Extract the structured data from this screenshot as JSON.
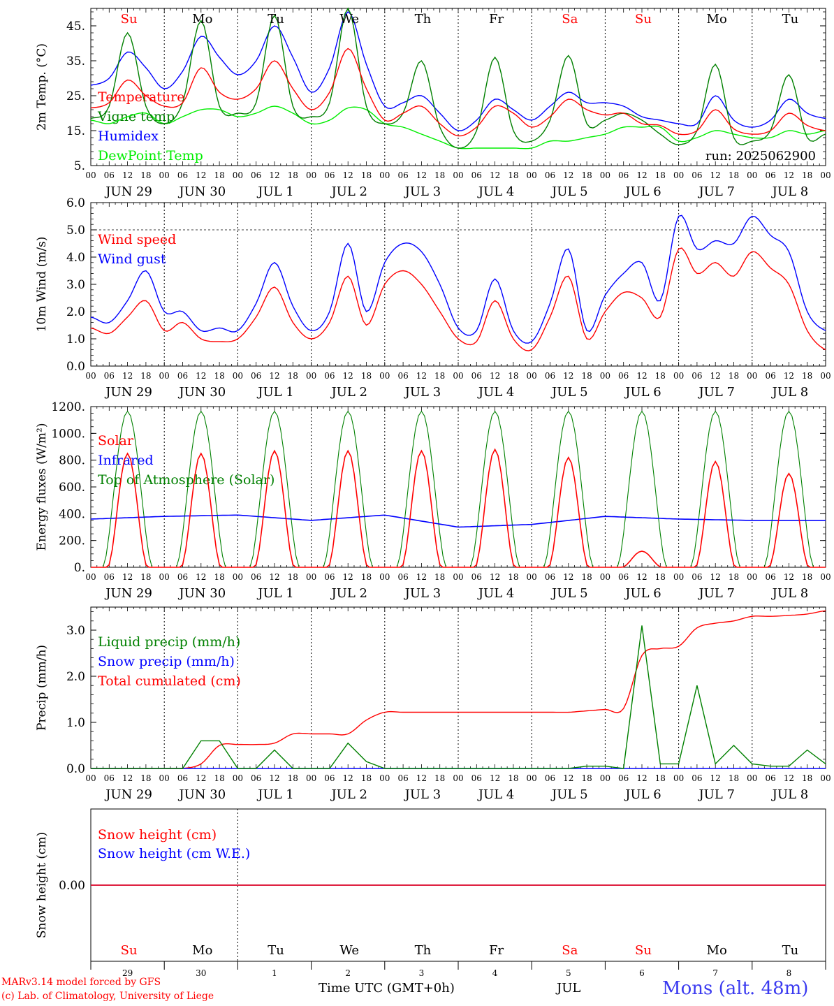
{
  "chart_data": [
    {
      "type": "line",
      "ylabel": "2m Temp. (°C)",
      "ylim": [
        5,
        50
      ],
      "yticks": [
        "5.",
        "15.",
        "25.",
        "35.",
        "45."
      ],
      "grid_hline": null,
      "run_label": "run: 2025062900",
      "x_hours": [
        0,
        6,
        12,
        18,
        24,
        30,
        36,
        42,
        48,
        54,
        60,
        66,
        72,
        78,
        84,
        90,
        96,
        102,
        108,
        114,
        120,
        126,
        132,
        138,
        144,
        150,
        156,
        162,
        168,
        174,
        180,
        186,
        192,
        198,
        204,
        210,
        216,
        222,
        228,
        234,
        240
      ],
      "series": [
        {
          "name": "Temperature",
          "color": "#ff0000",
          "values": [
            21.5,
            23,
            29.5,
            25,
            22,
            23,
            33,
            26,
            24,
            27,
            35,
            27,
            21,
            26,
            38.5,
            27,
            18,
            20,
            22,
            17,
            13.5,
            16,
            22,
            20,
            16,
            19,
            24,
            21,
            19.5,
            20,
            17,
            16.5,
            14,
            15,
            21,
            15.5,
            14,
            15,
            20,
            16.5,
            15
          ]
        },
        {
          "name": "Vigne temp",
          "color": "#008000",
          "values": [
            18.5,
            22,
            43,
            22,
            17,
            23,
            46.5,
            22,
            20,
            23,
            48,
            22,
            19,
            23,
            50,
            22,
            17,
            20,
            35,
            16,
            10,
            15,
            36,
            15,
            12,
            18,
            36.5,
            17,
            18,
            20,
            18,
            14,
            11,
            15,
            34,
            13,
            12,
            15,
            31,
            13,
            14
          ]
        },
        {
          "name": "Humidex",
          "color": "#0000ff",
          "values": [
            28,
            30,
            37.5,
            33,
            27,
            32,
            42,
            36,
            31,
            35,
            45,
            36,
            26,
            33,
            49,
            34,
            22,
            23,
            25,
            20,
            15,
            18,
            24,
            21,
            18,
            22,
            26,
            23,
            23,
            22,
            19,
            18,
            17,
            17,
            25,
            18,
            16,
            18,
            24,
            20,
            18.5
          ]
        },
        {
          "name": "DewPoint Temp",
          "color": "#00ee00",
          "values": [
            18,
            17,
            19,
            20,
            17,
            19,
            21,
            21,
            19,
            20,
            22,
            20,
            17,
            18,
            21.5,
            21,
            17,
            16,
            14,
            12,
            10,
            10,
            10,
            10,
            10,
            12,
            12,
            13,
            14,
            16,
            16,
            16,
            12,
            13,
            15,
            14,
            13,
            13,
            15,
            14,
            15
          ]
        }
      ]
    },
    {
      "type": "line",
      "ylabel": "10m Wind (m/s)",
      "ylim": [
        0,
        6
      ],
      "yticks": [
        "0.0",
        "1.0",
        "2.0",
        "3.0",
        "4.0",
        "5.0",
        "6.0"
      ],
      "grid_hline": 5,
      "x_hours": [
        0,
        6,
        12,
        18,
        24,
        30,
        36,
        42,
        48,
        54,
        60,
        66,
        72,
        78,
        84,
        90,
        96,
        102,
        108,
        114,
        120,
        126,
        132,
        138,
        144,
        150,
        156,
        162,
        168,
        174,
        180,
        186,
        192,
        198,
        204,
        210,
        216,
        222,
        228,
        234,
        240
      ],
      "series": [
        {
          "name": "Wind speed",
          "color": "#ff0000",
          "values": [
            1.4,
            1.2,
            1.8,
            2.4,
            1.3,
            1.6,
            1.0,
            0.9,
            1.0,
            1.8,
            2.9,
            1.6,
            1.0,
            1.6,
            3.3,
            1.5,
            3.0,
            3.5,
            3.0,
            2.0,
            1.0,
            0.9,
            2.4,
            1.0,
            0.6,
            1.8,
            3.3,
            1.0,
            2.0,
            2.7,
            2.5,
            1.8,
            4.3,
            3.4,
            3.8,
            3.3,
            4.2,
            3.6,
            3.0,
            1.3,
            0.6
          ]
        },
        {
          "name": "Wind gust",
          "color": "#0000ff",
          "values": [
            1.8,
            1.6,
            2.4,
            3.5,
            2.0,
            2.0,
            1.3,
            1.4,
            1.3,
            2.3,
            3.8,
            2.2,
            1.3,
            2.0,
            4.5,
            2.0,
            3.8,
            4.5,
            4.2,
            3.0,
            1.4,
            1.3,
            3.2,
            1.3,
            0.9,
            2.3,
            4.3,
            1.3,
            2.6,
            3.4,
            3.8,
            2.4,
            5.5,
            4.3,
            4.6,
            4.5,
            5.5,
            4.8,
            4.2,
            2.0,
            1.3
          ]
        }
      ]
    },
    {
      "type": "line",
      "ylabel": "Energy fluxes (W/m²)",
      "ylim": [
        0,
        1200
      ],
      "yticks": [
        "0.",
        "200.",
        "400.",
        "600.",
        "800.",
        "1000.",
        "1200."
      ],
      "grid_hline": null,
      "diurnal": true,
      "daily_peaks": {
        "Solar": [
          850,
          850,
          870,
          870,
          870,
          880,
          820,
          120,
          790,
          700
        ],
        "Top of Atmosphere (Solar)": [
          1165,
          1165,
          1165,
          1165,
          1165,
          1165,
          1165,
          1165,
          1165,
          1165
        ]
      },
      "series": [
        {
          "name": "Solar",
          "color": "#ff0000"
        },
        {
          "name": "Infrared",
          "color": "#0000ff",
          "level_by_day": [
            360,
            380,
            390,
            350,
            390,
            300,
            320,
            380,
            360,
            350
          ]
        },
        {
          "name": "Top of Atmosphere (Solar)",
          "color": "#008000"
        }
      ]
    },
    {
      "type": "line",
      "ylabel": "Precip (mm/h)",
      "ylim": [
        0,
        3.5
      ],
      "yticks": [
        "0.0",
        "1.0",
        "2.0",
        "3.0"
      ],
      "grid_hline": null,
      "x_hours": [
        0,
        6,
        12,
        18,
        24,
        30,
        36,
        42,
        48,
        54,
        60,
        66,
        72,
        78,
        84,
        90,
        96,
        102,
        108,
        114,
        120,
        126,
        132,
        138,
        144,
        150,
        156,
        162,
        168,
        174,
        180,
        186,
        192,
        198,
        204,
        210,
        216,
        222,
        228,
        234,
        240
      ],
      "series": [
        {
          "name": "Liquid precip (mm/h)",
          "color": "#008000",
          "values": [
            0,
            0,
            0,
            0,
            0,
            0,
            0.6,
            0.6,
            0,
            0,
            0.4,
            0,
            0,
            0,
            0.55,
            0.15,
            0,
            0,
            0,
            0,
            0,
            0,
            0,
            0,
            0,
            0,
            0,
            0.05,
            0.05,
            0,
            3.1,
            0.1,
            0.1,
            1.8,
            0.1,
            0.5,
            0.1,
            0.05,
            0.05,
            0.4,
            0.1
          ]
        },
        {
          "name": "Snow precip (mm/h)",
          "color": "#0000ff",
          "values": [
            0,
            0,
            0,
            0,
            0,
            0,
            0,
            0,
            0,
            0,
            0,
            0,
            0,
            0,
            0,
            0,
            0,
            0,
            0,
            0,
            0,
            0,
            0,
            0,
            0,
            0,
            0,
            0,
            0,
            0,
            0,
            0,
            0,
            0,
            0,
            0,
            0,
            0,
            0,
            0,
            0
          ]
        },
        {
          "name": "Total cumulated (cm)",
          "color": "#ff0000",
          "values": [
            0,
            0,
            0,
            0,
            0,
            0,
            0.1,
            0.5,
            0.52,
            0.52,
            0.55,
            0.75,
            0.75,
            0.75,
            0.75,
            1.05,
            1.22,
            1.22,
            1.22,
            1.22,
            1.22,
            1.22,
            1.22,
            1.22,
            1.22,
            1.22,
            1.22,
            1.25,
            1.28,
            1.3,
            2.45,
            2.6,
            2.65,
            3.05,
            3.15,
            3.2,
            3.3,
            3.3,
            3.32,
            3.35,
            3.42
          ]
        }
      ]
    },
    {
      "type": "line",
      "ylabel": "Snow height (cm)",
      "ylim": [
        -1,
        1
      ],
      "yticks": [
        "0.00"
      ],
      "grid_hline": null,
      "series": [
        {
          "name": "Snow height (cm)",
          "color": "#ff0000",
          "value": 0
        },
        {
          "name": "Snow height (cm W.E.)",
          "color": "#0000ff",
          "value": 0
        }
      ]
    }
  ],
  "day_names": [
    {
      "text": "Su",
      "color": "#ff0000"
    },
    {
      "text": "Mo",
      "color": "#000000"
    },
    {
      "text": "Tu",
      "color": "#000000"
    },
    {
      "text": "We",
      "color": "#000000"
    },
    {
      "text": "Th",
      "color": "#000000"
    },
    {
      "text": "Fr",
      "color": "#000000"
    },
    {
      "text": "Sa",
      "color": "#ff0000"
    },
    {
      "text": "Su",
      "color": "#ff0000"
    },
    {
      "text": "Mo",
      "color": "#000000"
    },
    {
      "text": "Tu",
      "color": "#000000"
    }
  ],
  "date_labels": [
    "JUN 29",
    "JUN 30",
    "JUL  1",
    "JUL  2",
    "JUL  3",
    "JUL  4",
    "JUL  5",
    "JUL  6",
    "JUL  7",
    "JUL  8"
  ],
  "hour_ticks": [
    "00",
    "06",
    "12",
    "18"
  ],
  "final_tick": "00",
  "bottom_day_numbers": [
    "29",
    "30",
    "1",
    "2",
    "3",
    "4",
    "5",
    "6",
    "7",
    "8"
  ],
  "footer": {
    "model_line": "MARv3.14 model forced by GFS",
    "lab_line": "(c) Lab. of Climatology, University of Liege",
    "time_label": "Time UTC (GMT+0h)",
    "month_label": "JUL",
    "station": "Mons (alt. 48m)"
  }
}
